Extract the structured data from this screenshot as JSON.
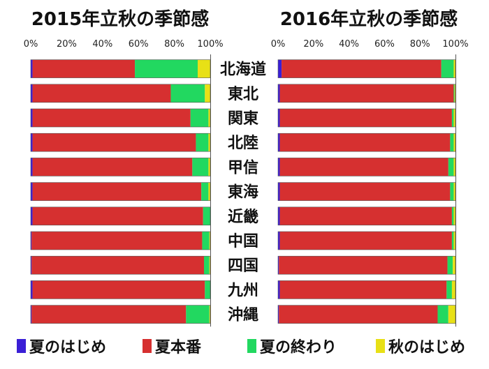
{
  "chart_data": {
    "type": "bar",
    "stacked": true,
    "orientation": "horizontal",
    "categories": [
      "北海道",
      "東北",
      "関東",
      "北陸",
      "甲信",
      "東海",
      "近畿",
      "中国",
      "四国",
      "九州",
      "沖縄"
    ],
    "xlim": [
      0,
      100
    ],
    "x_ticks": [
      "0%",
      "20%",
      "40%",
      "60%",
      "80%",
      "100%"
    ],
    "legend": {
      "placement": "bottom",
      "entries": [
        {
          "name": "夏のはじめ",
          "color": "#3a1fd6"
        },
        {
          "name": "夏本番",
          "color": "#d63030"
        },
        {
          "name": "夏の終わり",
          "color": "#22d860"
        },
        {
          "name": "秋のはじめ",
          "color": "#e8e016"
        }
      ]
    },
    "charts": [
      {
        "title": "2015年立秋の季節感",
        "series": [
          {
            "name": "夏のはじめ",
            "values": [
              1,
              1,
              1,
              1,
              1,
              1,
              1,
              0.5,
              0.5,
              1,
              0.5
            ]
          },
          {
            "name": "夏本番",
            "values": [
              57,
              77,
              88,
              91,
              89,
              94,
              95,
              95,
              96,
              96,
              86
            ]
          },
          {
            "name": "夏の終わり",
            "values": [
              35,
              19,
              10,
              7,
              9,
              4,
              4,
              4,
              3,
              3,
              13
            ]
          },
          {
            "name": "秋のはじめ",
            "values": [
              7,
              3,
              1,
              1,
              1,
              1,
              0,
              0.5,
              0.5,
              0,
              0.5
            ]
          }
        ]
      },
      {
        "title": "2016年立秋の季節感",
        "series": [
          {
            "name": "夏のはじめ",
            "values": [
              2,
              1,
              1,
              1,
              1,
              1,
              1,
              1,
              0.5,
              1,
              0.5
            ]
          },
          {
            "name": "夏本番",
            "values": [
              90,
              98,
              97,
              96,
              95,
              96,
              97,
              97,
              95,
              94,
              89
            ]
          },
          {
            "name": "夏の終わり",
            "values": [
              7,
              0.5,
              1,
              2,
              3,
              2,
              1,
              1,
              3,
              3,
              6
            ]
          },
          {
            "name": "秋のはじめ",
            "values": [
              1,
              0.5,
              1,
              1,
              1,
              1,
              1,
              1,
              1.5,
              2,
              4
            ]
          }
        ]
      }
    ]
  }
}
